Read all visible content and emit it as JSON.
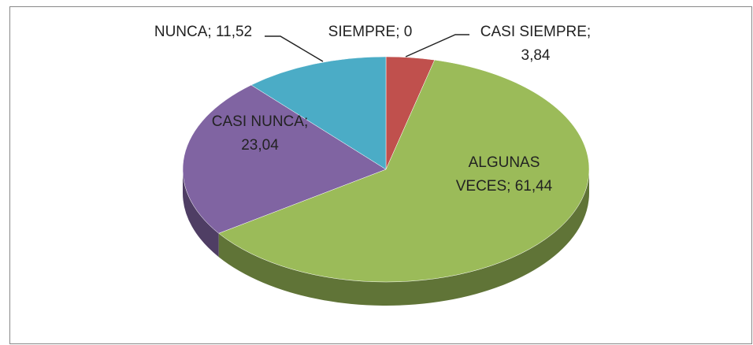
{
  "chart_data": {
    "type": "pie3d",
    "values": [
      0,
      3.84,
      61.44,
      23.04,
      11.52
    ],
    "value_labels": [
      "SIEMPRE; 0",
      "CASI SIEMPRE; 3,84",
      "ALGUNAS VECES; 61,44",
      "CASI NUNCA; 23,04",
      "NUNCA; 11,52"
    ],
    "colors": [
      "#4f81bd",
      "#c0504d",
      "#9bbb59",
      "#8064a2",
      "#4bacc6"
    ]
  }
}
